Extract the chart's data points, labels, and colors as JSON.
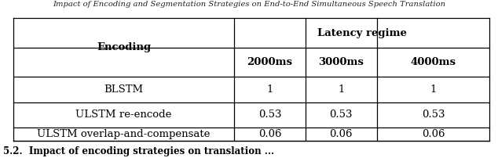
{
  "col_header_1": "Encoding",
  "col_header_group": "Latency regime",
  "sub_headers": [
    "2000ms",
    "3000ms",
    "4000ms"
  ],
  "rows": [
    [
      "BLSTM",
      "1",
      "1",
      "1"
    ],
    [
      "ULSTM re-encode",
      "0.53",
      "0.53",
      "0.53"
    ],
    [
      "ULSTM overlap-and-compensate",
      "0.06",
      "0.06",
      "0.06"
    ]
  ],
  "background_color": "#ffffff",
  "line_color": "#000000",
  "text_color": "#000000",
  "fontsize": 9.5,
  "header_fontsize": 9.5,
  "title_text": "Impact of Encoding and Segmentation Strategies on End-to-End Simultaneous Speech Translation",
  "caption_text": "5.2.  Impact of encoding strategies on translation ..."
}
